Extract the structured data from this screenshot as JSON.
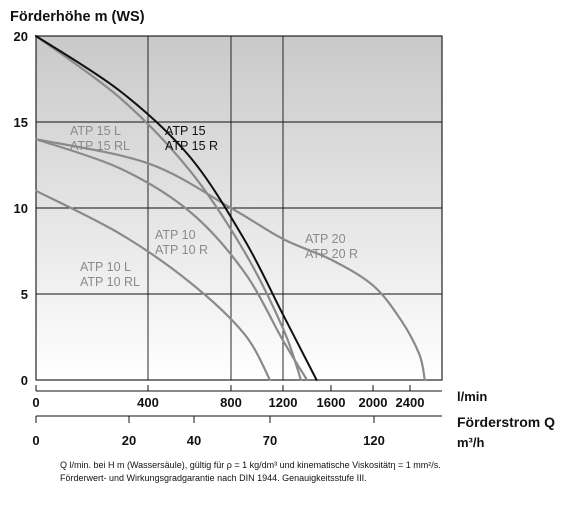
{
  "chart_data": {
    "type": "line",
    "title": "Förderhöhe m (WS)",
    "ylabel": "Förderhöhe m (WS)",
    "ylim": [
      0,
      20
    ],
    "y_ticks": [
      "0",
      "5",
      "10",
      "15",
      "20"
    ],
    "x_ticks_lmin": [
      {
        "label": "0",
        "value": 0
      },
      {
        "label": "400",
        "value": 400
      },
      {
        "label": "800",
        "value": 800
      },
      {
        "label": "1200",
        "value": 1200
      },
      {
        "label": "1600",
        "value": 1600
      },
      {
        "label": "2000",
        "value": 2000
      },
      {
        "label": "2400",
        "value": 2400
      }
    ],
    "x_unit_lmin": "l/min",
    "x_ticks_m3h": [
      {
        "label": "0",
        "value": 0
      },
      {
        "label": "20",
        "value": 20
      },
      {
        "label": "40",
        "value": 40
      },
      {
        "label": "70",
        "value": 70
      },
      {
        "label": "120",
        "value": 120
      }
    ],
    "xlabel": "Förderstrom Q",
    "x_unit_m3h": "m³/h",
    "grid": true,
    "series": [
      {
        "name": "ATP 15 L / ATP 15 RL",
        "color": "#8a8a8a",
        "points": [
          [
            0,
            20
          ],
          [
            300,
            16.4
          ],
          [
            600,
            12.2
          ],
          [
            900,
            7.5
          ],
          [
            1200,
            3.0
          ],
          [
            1350,
            0
          ]
        ]
      },
      {
        "name": "ATP 15 / ATP 15 R",
        "color": "#111111",
        "points": [
          [
            0,
            20
          ],
          [
            300,
            16.8
          ],
          [
            600,
            13.0
          ],
          [
            900,
            8.2
          ],
          [
            1200,
            3.8
          ],
          [
            1480,
            0
          ]
        ]
      },
      {
        "name": "ATP 10 / ATP 10 R",
        "color": "#8a8a8a",
        "points": [
          [
            0,
            14
          ],
          [
            300,
            12.3
          ],
          [
            600,
            9.8
          ],
          [
            900,
            6.3
          ],
          [
            1200,
            2.3
          ],
          [
            1400,
            0
          ]
        ]
      },
      {
        "name": "ATP 10 L / ATP 10 RL",
        "color": "#8a8a8a",
        "points": [
          [
            0,
            11
          ],
          [
            300,
            8.5
          ],
          [
            600,
            5.7
          ],
          [
            900,
            2.7
          ],
          [
            1100,
            0
          ]
        ]
      },
      {
        "name": "ATP 20 / ATP 20 R",
        "color": "#8a8a8a",
        "points": [
          [
            0,
            14
          ],
          [
            400,
            12.6
          ],
          [
            800,
            10.0
          ],
          [
            1200,
            8.2
          ],
          [
            1600,
            7.0
          ],
          [
            2000,
            5.5
          ],
          [
            2300,
            3.5
          ],
          [
            2500,
            1.5
          ],
          [
            2560,
            0
          ]
        ]
      }
    ],
    "series_labels": [
      {
        "lines": [
          "ATP 15 L",
          "ATP 15 RL"
        ],
        "color": "gray"
      },
      {
        "lines": [
          "ATP 15",
          "ATP 15 R"
        ],
        "color": "black"
      },
      {
        "lines": [
          "ATP 10",
          "ATP 10 R"
        ],
        "color": "gray"
      },
      {
        "lines": [
          "ATP 10 L",
          "ATP 10 RL"
        ],
        "color": "gray"
      },
      {
        "lines": [
          "ATP 20",
          "ATP 20 R"
        ],
        "color": "gray"
      }
    ],
    "footnote": [
      "Q l/min. bei H m (Wassersäule), gültig für ρ = 1 kg/dm³ und kinematische Viskositätη = 1 mm²/s.",
      "Förderwert- und Wirkungsgradgarantie nach DIN 1944. Genauigkeitsstufe III."
    ]
  }
}
